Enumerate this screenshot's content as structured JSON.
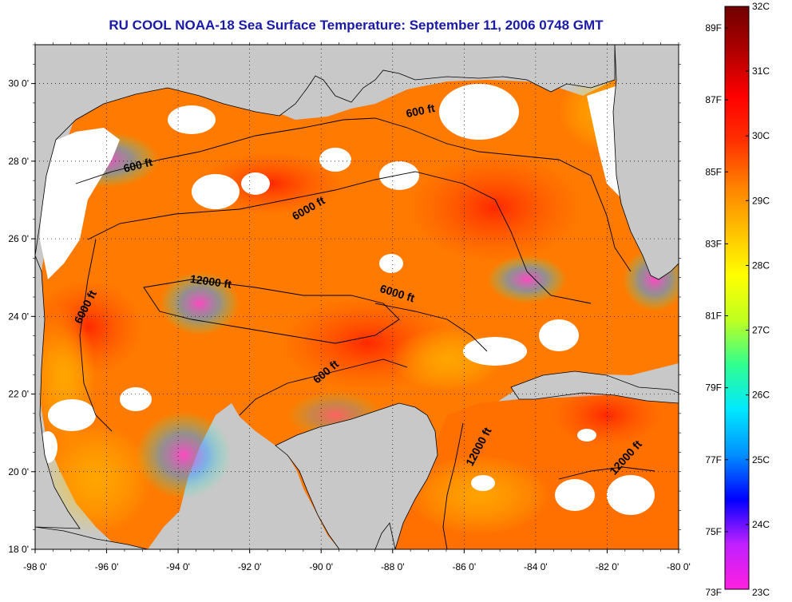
{
  "title": "RU COOL  NOAA-18  Sea Surface Temperature:  September 11, 2006 0748 GMT",
  "map": {
    "region": "Gulf of Mexico",
    "lon_range": [
      -98,
      -80
    ],
    "lat_range": [
      18,
      31
    ],
    "lon_ticks": [
      "-98 0'",
      "-96 0'",
      "-94 0'",
      "-92 0'",
      "-90 0'",
      "-88 0'",
      "-86 0'",
      "-84 0'",
      "-82 0'",
      "-80 0'"
    ],
    "lat_ticks": [
      "30 0'",
      "28 0'",
      "26 0'",
      "24 0'",
      "22 0'",
      "20 0'",
      "18 0'"
    ],
    "grid": true,
    "land_color": "#c8c8c8",
    "cloud_color": "#ffffff",
    "contour_labels": [
      {
        "text": "600 ft",
        "lon": -87.2,
        "lat": 29.2,
        "angle": -12
      },
      {
        "text": "600 ft",
        "lon": -95.1,
        "lat": 27.8,
        "angle": -14
      },
      {
        "text": "6000 ft",
        "lon": -90.3,
        "lat": 26.7,
        "angle": -30
      },
      {
        "text": "6000 ft",
        "lon": -96.5,
        "lat": 24.2,
        "angle": -63
      },
      {
        "text": "12000 ft",
        "lon": -93.1,
        "lat": 24.8,
        "angle": 8
      },
      {
        "text": "6000 ft",
        "lon": -87.9,
        "lat": 24.5,
        "angle": 17
      },
      {
        "text": "600 ft",
        "lon": -89.8,
        "lat": 22.5,
        "angle": -40
      },
      {
        "text": "12000 ft",
        "lon": -85.5,
        "lat": 20.6,
        "angle": -62
      },
      {
        "text": "12000 ft",
        "lon": -81.4,
        "lat": 20.3,
        "angle": -48
      }
    ]
  },
  "colorbar": {
    "fahrenheit_labels": [
      "89F",
      "87F",
      "85F",
      "83F",
      "81F",
      "79F",
      "77F",
      "75F",
      "73F"
    ],
    "celsius_labels": [
      "32C",
      "31C",
      "30C",
      "29C",
      "28C",
      "27C",
      "26C",
      "25C",
      "24C",
      "23C"
    ],
    "range_c": [
      23,
      32
    ],
    "colors": [
      "#ff20e0",
      "#c020ff",
      "#0000ff",
      "#0090ff",
      "#00e8ff",
      "#30ff90",
      "#c0ff20",
      "#ffff00",
      "#ffc000",
      "#ff8000",
      "#ff3000",
      "#ff0000",
      "#b00000",
      "#700000"
    ]
  }
}
